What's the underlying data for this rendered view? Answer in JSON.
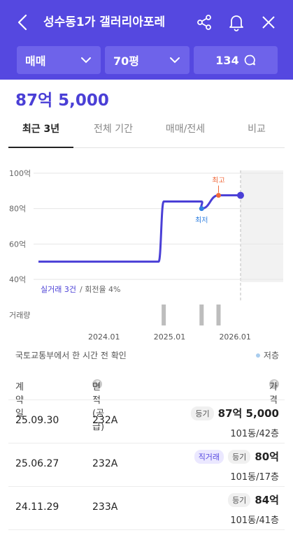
{
  "header": {
    "title": "성수동1가 갤러리아포레",
    "filters": [
      {
        "label": "매매"
      },
      {
        "label": "70평"
      },
      {
        "label": "134"
      }
    ]
  },
  "price_display": "87억 5,000",
  "tabs": [
    "최근 3년",
    "전체 기간",
    "매매/전세",
    "비교"
  ],
  "active_tab": "최근 3년",
  "chart_data": {
    "type": "line",
    "y_ticks": [
      "100억",
      "80억",
      "60억",
      "40억"
    ],
    "ylim": [
      40,
      100
    ],
    "x_ticks": [
      "2024.01",
      "2025.01",
      "2026.01"
    ],
    "series": [
      {
        "values": [
          {
            "date": "2023.01",
            "price": 50
          },
          {
            "date": "2024.11",
            "price": 50
          },
          {
            "date": "2024.11.29",
            "price": 84
          },
          {
            "date": "2025.06.27",
            "price": 84
          },
          {
            "date": "2025.06.27",
            "price": 80
          },
          {
            "date": "2025.09.30",
            "price": 87.5
          },
          {
            "date": "2026.02",
            "price": 87.5
          }
        ]
      }
    ],
    "markers": [
      {
        "label": "최저",
        "date": "2025.06.27",
        "price": 80,
        "color": "#2f7fe0"
      },
      {
        "label": "최고",
        "date": "2025.09.30",
        "price": 87.5,
        "color": "#f06a3c"
      }
    ],
    "summary": "실거래 3건",
    "summary_extra": "/ 회전율 4%",
    "volume_label": "거래량",
    "volume": [
      {
        "date": "2024.11.29",
        "count": 1
      },
      {
        "date": "2025.06.27",
        "count": 1
      },
      {
        "date": "2025.09.30",
        "count": 1
      }
    ],
    "line_color": "#4a3fd6"
  },
  "notice": "국토교통부에서 한 시간 전 확인",
  "legend_low": "저층",
  "table": {
    "headers": {
      "date": "계약일",
      "area": "면적(공급)",
      "price": "가격"
    },
    "rows": [
      {
        "date": "25.09.30",
        "area": "232A",
        "tags": [
          "등기"
        ],
        "price": "87억 5,000",
        "unit": "101동/42층"
      },
      {
        "date": "25.06.27",
        "area": "232A",
        "tags": [
          "직거래",
          "등기"
        ],
        "price": "80억",
        "unit": "101동/17층"
      },
      {
        "date": "24.11.29",
        "area": "233A",
        "tags": [
          "등기"
        ],
        "price": "84억",
        "unit": "101동/41층"
      }
    ]
  }
}
